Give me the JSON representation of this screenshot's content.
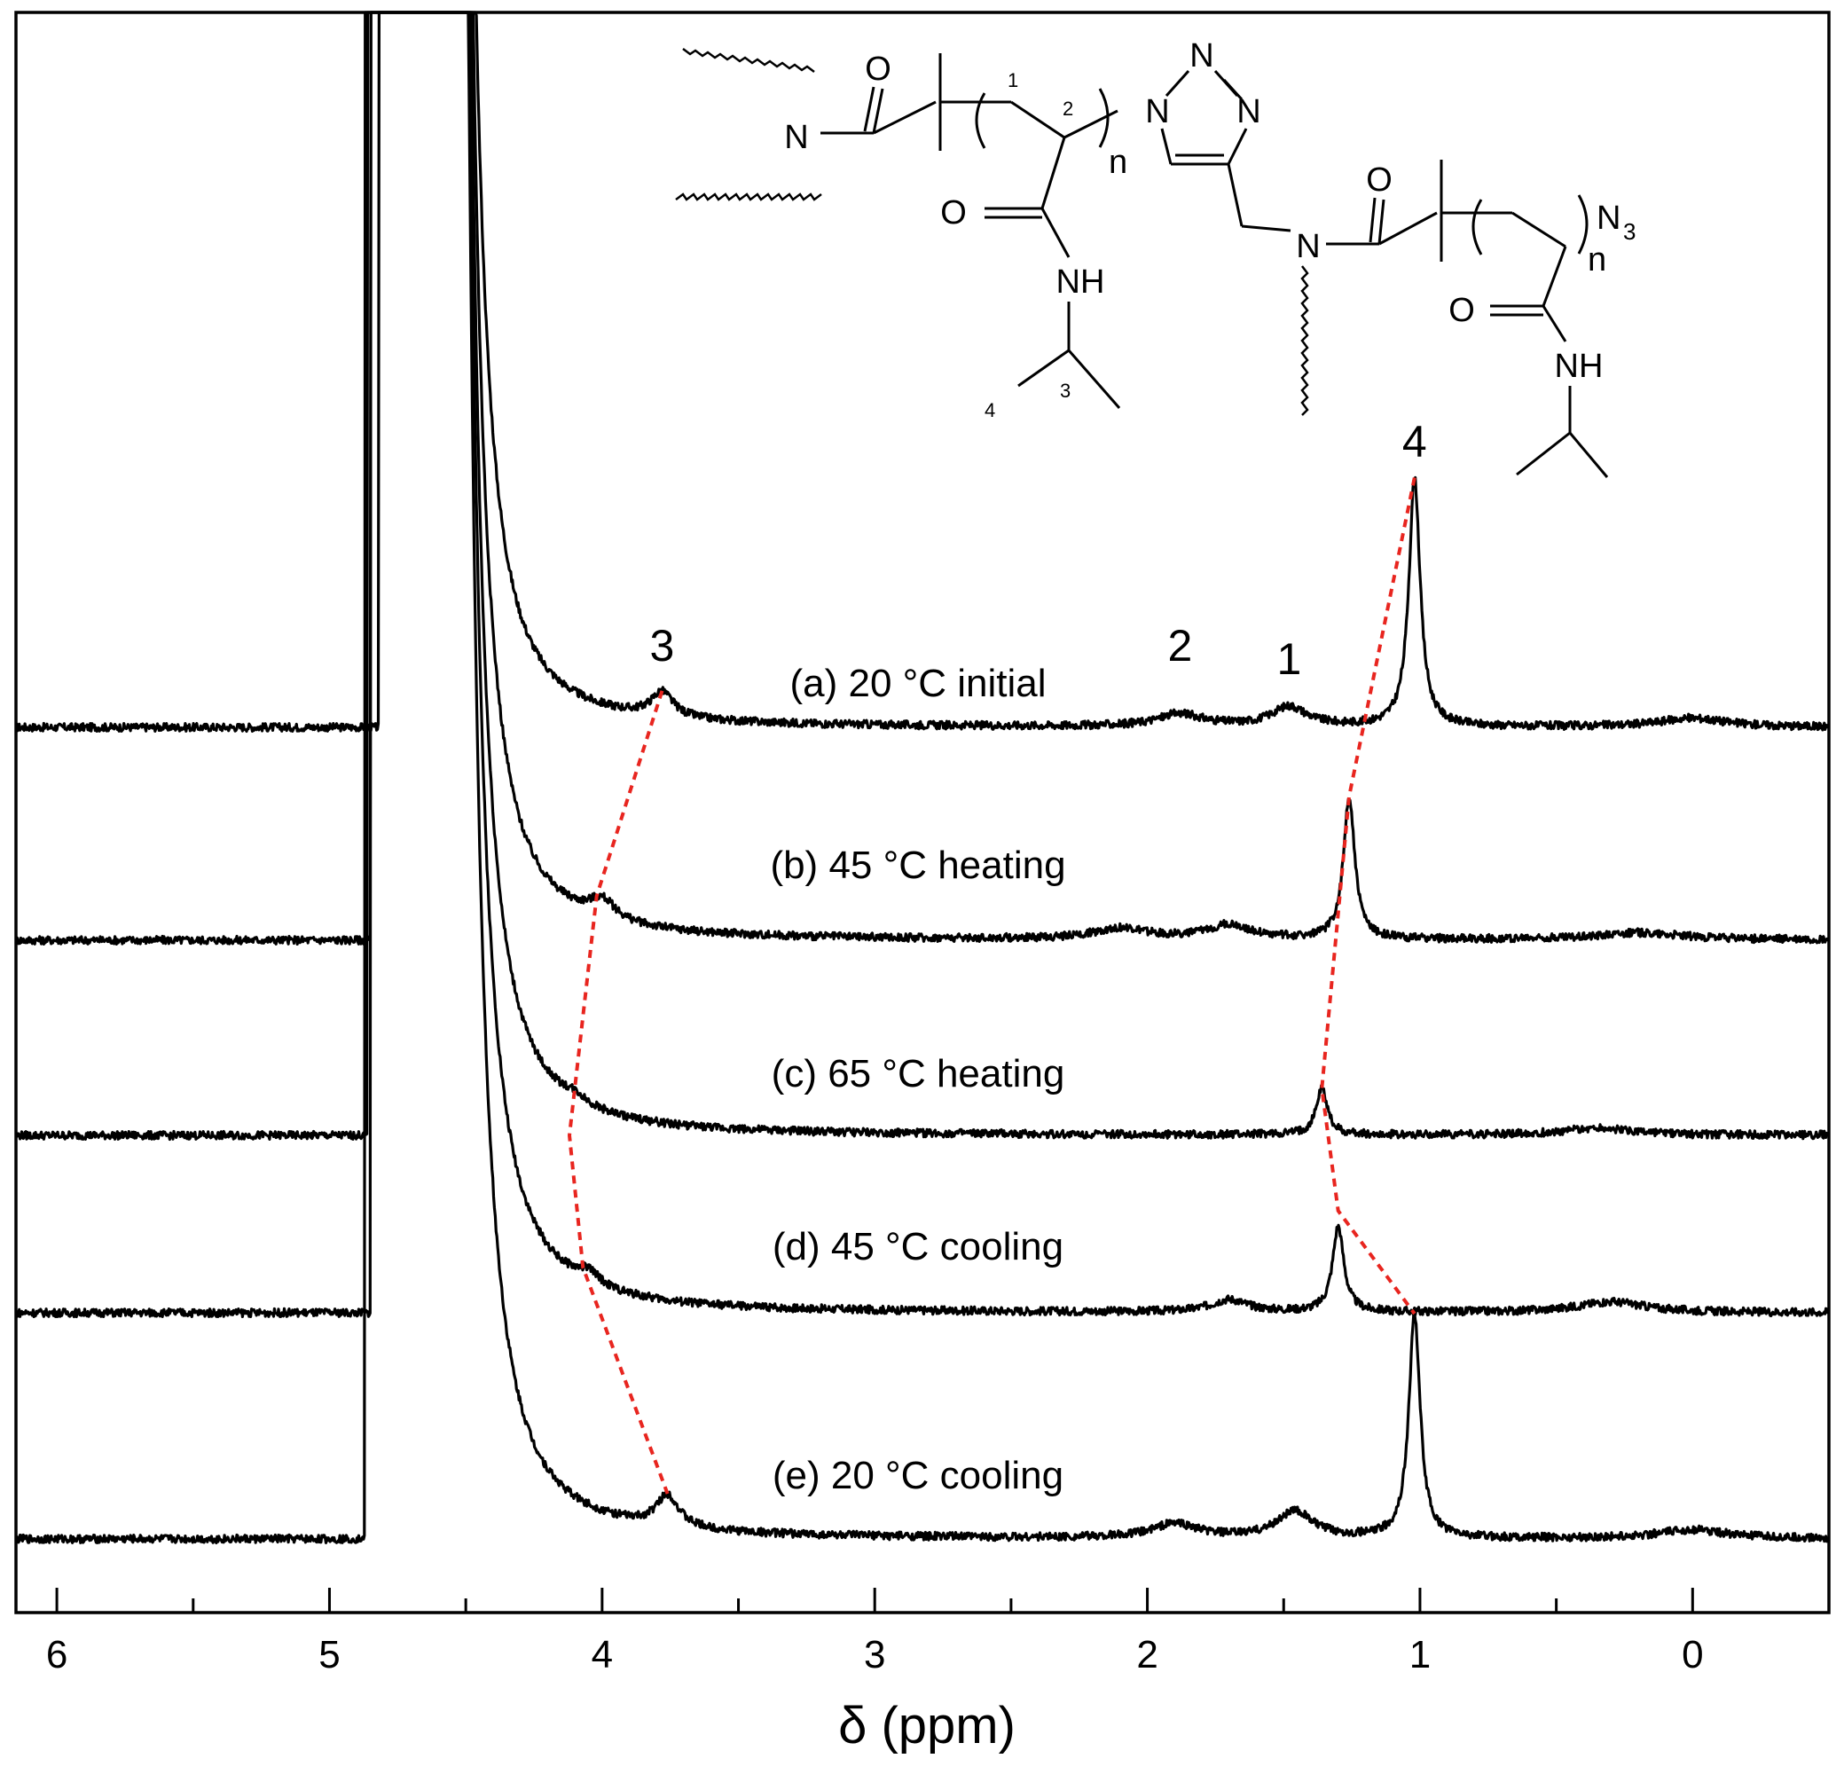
{
  "chart_data": {
    "type": "line",
    "title": "",
    "xlabel": "δ (ppm)",
    "ylabel": "",
    "x_reversed": true,
    "xlim": [
      6.15,
      -0.5
    ],
    "xticks": [
      6,
      5,
      4,
      3,
      2,
      1,
      0
    ],
    "grid": false,
    "legend": "none",
    "solvent_peak_ppm": 4.7,
    "peak_labels": [
      {
        "label": "3",
        "ppm": 3.78
      },
      {
        "label": "2",
        "ppm": 1.88
      },
      {
        "label": "1",
        "ppm": 1.48
      },
      {
        "label": "4",
        "ppm": 1.02
      }
    ],
    "series": [
      {
        "label": "(a) 20 °C initial",
        "peaks": [
          {
            "ppm": 3.78,
            "height": 0.7,
            "width": 0.05
          },
          {
            "ppm": 1.88,
            "height": 0.35,
            "width": 0.1
          },
          {
            "ppm": 1.48,
            "height": 0.55,
            "width": 0.08
          },
          {
            "ppm": 1.02,
            "height": 7.0,
            "width": 0.025
          },
          {
            "ppm": 0.0,
            "height": 0.25,
            "width": 0.15
          }
        ]
      },
      {
        "label": "(b) 45 °C heating",
        "peaks": [
          {
            "ppm": 4.0,
            "height": 0.55,
            "width": 0.06
          },
          {
            "ppm": 2.1,
            "height": 0.3,
            "width": 0.12
          },
          {
            "ppm": 1.7,
            "height": 0.4,
            "width": 0.1
          },
          {
            "ppm": 1.26,
            "height": 4.0,
            "width": 0.025
          },
          {
            "ppm": 0.2,
            "height": 0.2,
            "width": 0.2
          }
        ]
      },
      {
        "label": "(c) 65 °C heating",
        "peaks": [
          {
            "ppm": 4.1,
            "height": 0.2,
            "width": 0.05
          },
          {
            "ppm": 1.36,
            "height": 1.3,
            "width": 0.025
          },
          {
            "ppm": 0.35,
            "height": 0.2,
            "width": 0.15
          }
        ]
      },
      {
        "label": "(d) 45 °C cooling",
        "peaks": [
          {
            "ppm": 4.05,
            "height": 0.35,
            "width": 0.05
          },
          {
            "ppm": 1.7,
            "height": 0.35,
            "width": 0.08
          },
          {
            "ppm": 1.3,
            "height": 2.4,
            "width": 0.025
          },
          {
            "ppm": 0.3,
            "height": 0.3,
            "width": 0.15
          }
        ]
      },
      {
        "label": "(e) 20 °C cooling",
        "peaks": [
          {
            "ppm": 3.76,
            "height": 0.9,
            "width": 0.05
          },
          {
            "ppm": 1.9,
            "height": 0.4,
            "width": 0.1
          },
          {
            "ppm": 1.46,
            "height": 0.75,
            "width": 0.08
          },
          {
            "ppm": 1.02,
            "height": 6.3,
            "width": 0.025
          },
          {
            "ppm": 0.0,
            "height": 0.25,
            "width": 0.15
          }
        ]
      }
    ],
    "guide_color": "#e8251f",
    "guide_lines": [
      {
        "peak": "3",
        "points": [
          [
            3.78,
            "a"
          ],
          [
            4.02,
            "b"
          ],
          [
            4.12,
            "c"
          ],
          [
            4.07,
            "d"
          ],
          [
            3.78,
            "e"
          ]
        ]
      },
      {
        "peak": "4",
        "points": [
          [
            1.02,
            "a_top"
          ],
          [
            1.27,
            "b_top"
          ],
          [
            1.36,
            "c_top"
          ],
          [
            1.32,
            "d_mid"
          ],
          [
            1.05,
            "e_top"
          ]
        ]
      }
    ]
  },
  "structure": {
    "atoms": {
      "n_left": "N",
      "o1": "O",
      "o2": "O",
      "nh1": "NH",
      "n_tri1": "N",
      "n_tri2": "N",
      "n_tri3": "N",
      "n_right": "N",
      "o3": "O",
      "o4": "O",
      "nh2": "NH",
      "n3": "N",
      "n3_sub": "3"
    },
    "repeat": [
      "n",
      "n"
    ],
    "numbers": [
      "1",
      "2",
      "3",
      "4"
    ]
  }
}
